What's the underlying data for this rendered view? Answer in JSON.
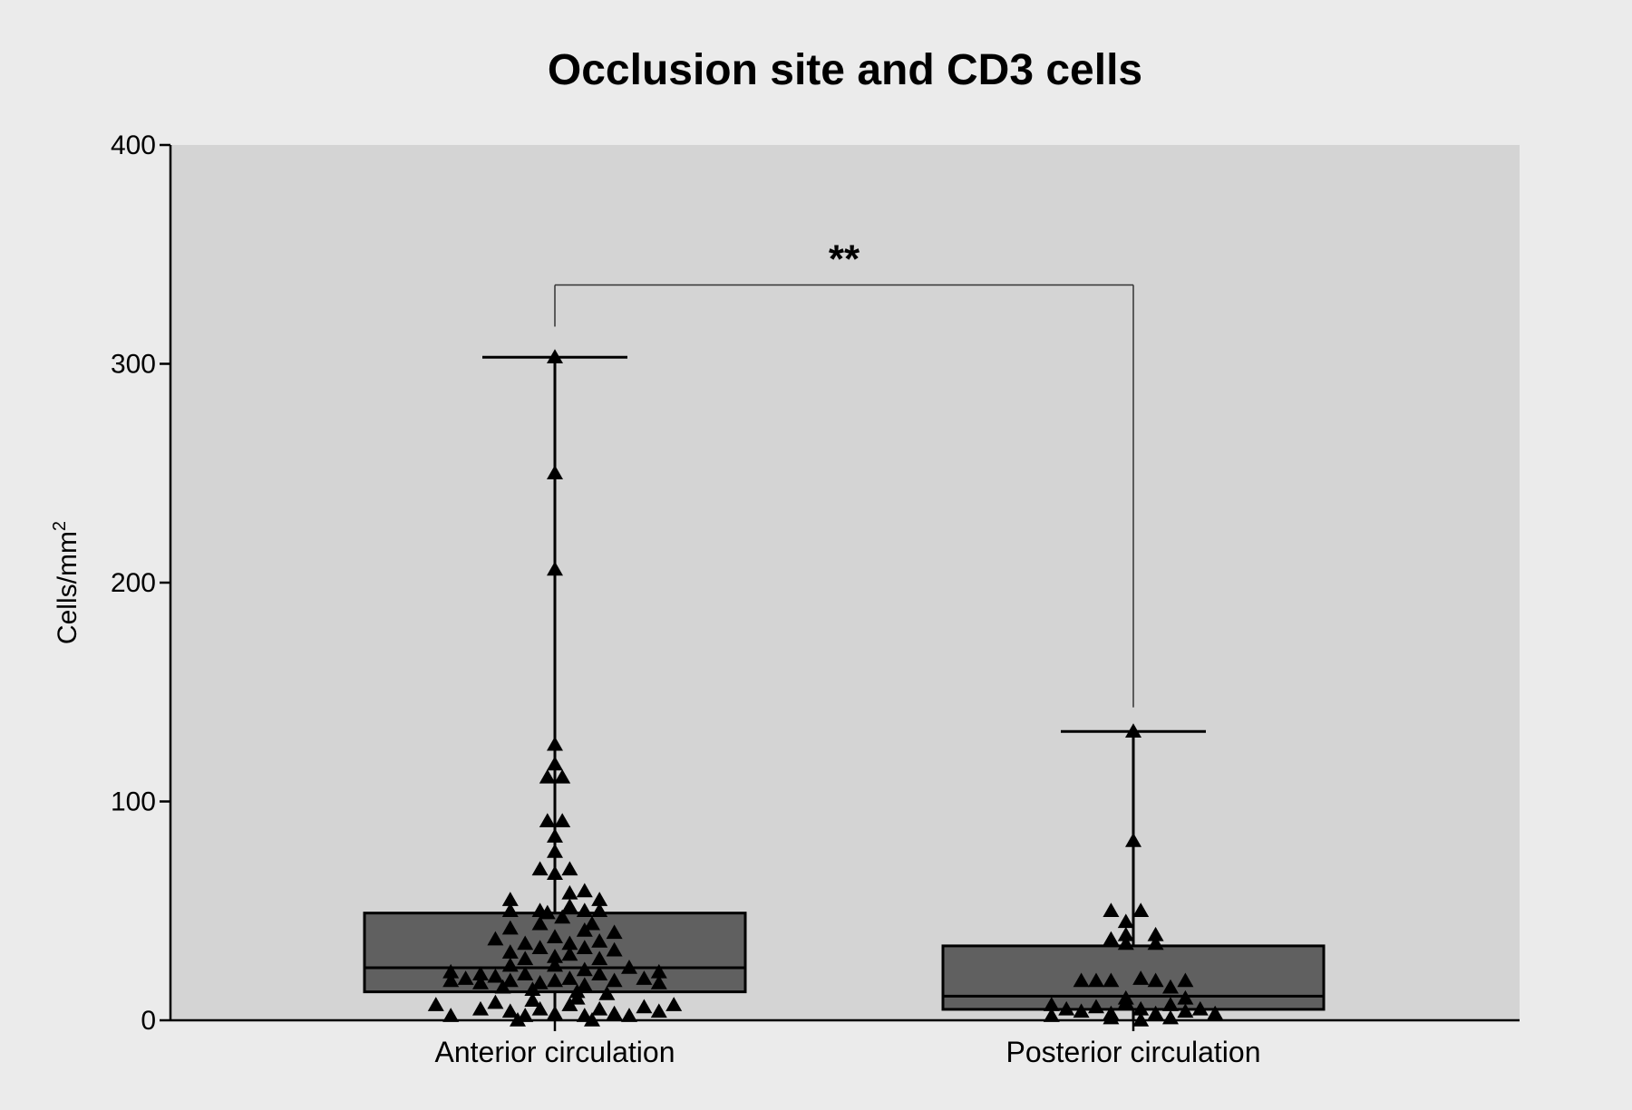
{
  "chart_data": {
    "type": "box",
    "title": "Occlusion site and CD3 cells",
    "ylabel_base": "Cells/mm",
    "ylabel_sup": "2",
    "xlabel": "",
    "ylim": [
      0,
      400
    ],
    "yticks": [
      0,
      100,
      200,
      300,
      400
    ],
    "categories": [
      "Anterior circulation",
      "Posterior circulation"
    ],
    "grid": false,
    "colors": {
      "page_background": "#ebebeb",
      "plot_background": "#d4d4d4",
      "box_fill": "#606060",
      "ink": "#000000"
    },
    "groups": [
      {
        "name": "Anterior circulation",
        "box": {
          "whisker_low": 0,
          "q1": 13,
          "median": 24,
          "q3": 49,
          "whisker_high": 303
        },
        "points": [
          {
            "x": -0.32,
            "y": 7
          },
          {
            "x": -0.28,
            "y": 2
          },
          {
            "x": -0.2,
            "y": 5
          },
          {
            "x": -0.16,
            "y": 8
          },
          {
            "x": -0.12,
            "y": 4
          },
          {
            "x": -0.08,
            "y": 2
          },
          {
            "x": -0.04,
            "y": 5
          },
          {
            "x": 0,
            "y": 3
          },
          {
            "x": 0.04,
            "y": 7
          },
          {
            "x": 0.08,
            "y": 2
          },
          {
            "x": 0.12,
            "y": 5
          },
          {
            "x": 0.16,
            "y": 3
          },
          {
            "x": 0.2,
            "y": 2
          },
          {
            "x": 0.24,
            "y": 6
          },
          {
            "x": 0.28,
            "y": 4
          },
          {
            "x": 0.32,
            "y": 7
          },
          {
            "x": -0.1,
            "y": 0
          },
          {
            "x": 0.1,
            "y": 0
          },
          {
            "x": -0.06,
            "y": 9
          },
          {
            "x": 0.06,
            "y": 10
          },
          {
            "x": -0.28,
            "y": 22
          },
          {
            "x": -0.28,
            "y": 18
          },
          {
            "x": -0.24,
            "y": 19
          },
          {
            "x": -0.2,
            "y": 21
          },
          {
            "x": -0.2,
            "y": 17
          },
          {
            "x": -0.16,
            "y": 20
          },
          {
            "x": -0.12,
            "y": 25
          },
          {
            "x": -0.12,
            "y": 18
          },
          {
            "x": -0.08,
            "y": 21
          },
          {
            "x": -0.04,
            "y": 17
          },
          {
            "x": 0,
            "y": 25
          },
          {
            "x": 0,
            "y": 18
          },
          {
            "x": 0.04,
            "y": 19
          },
          {
            "x": 0.08,
            "y": 23
          },
          {
            "x": 0.08,
            "y": 16
          },
          {
            "x": 0.12,
            "y": 21
          },
          {
            "x": 0.16,
            "y": 18
          },
          {
            "x": 0.2,
            "y": 24
          },
          {
            "x": 0.24,
            "y": 19
          },
          {
            "x": 0.28,
            "y": 22
          },
          {
            "x": 0.28,
            "y": 17
          },
          {
            "x": -0.06,
            "y": 14
          },
          {
            "x": 0.06,
            "y": 13
          },
          {
            "x": 0.14,
            "y": 12
          },
          {
            "x": -0.14,
            "y": 15
          },
          {
            "x": -0.16,
            "y": 37
          },
          {
            "x": -0.12,
            "y": 31
          },
          {
            "x": -0.12,
            "y": 42
          },
          {
            "x": -0.08,
            "y": 35
          },
          {
            "x": -0.08,
            "y": 28
          },
          {
            "x": -0.04,
            "y": 44
          },
          {
            "x": -0.04,
            "y": 33
          },
          {
            "x": 0,
            "y": 29
          },
          {
            "x": 0,
            "y": 38
          },
          {
            "x": 0.04,
            "y": 35
          },
          {
            "x": 0.04,
            "y": 30
          },
          {
            "x": 0.08,
            "y": 41
          },
          {
            "x": 0.08,
            "y": 33
          },
          {
            "x": 0.12,
            "y": 36
          },
          {
            "x": 0.12,
            "y": 28
          },
          {
            "x": 0.16,
            "y": 40
          },
          {
            "x": 0.16,
            "y": 32
          },
          {
            "x": -0.02,
            "y": 49
          },
          {
            "x": 0.02,
            "y": 47
          },
          {
            "x": 0.1,
            "y": 44
          },
          {
            "x": -0.12,
            "y": 55
          },
          {
            "x": -0.12,
            "y": 50
          },
          {
            "x": 0.04,
            "y": 52
          },
          {
            "x": 0.04,
            "y": 58
          },
          {
            "x": 0.08,
            "y": 59
          },
          {
            "x": 0.12,
            "y": 55
          },
          {
            "x": 0.12,
            "y": 50
          },
          {
            "x": 0.08,
            "y": 50
          },
          {
            "x": -0.04,
            "y": 50
          },
          {
            "x": -0.04,
            "y": 69
          },
          {
            "x": 0.04,
            "y": 69
          },
          {
            "x": 0,
            "y": 67
          },
          {
            "x": 0,
            "y": 77
          },
          {
            "x": 0,
            "y": 84
          },
          {
            "x": -0.02,
            "y": 91
          },
          {
            "x": 0.02,
            "y": 91
          },
          {
            "x": -0.02,
            "y": 111
          },
          {
            "x": 0.02,
            "y": 111
          },
          {
            "x": 0,
            "y": 117
          },
          {
            "x": 0,
            "y": 126
          },
          {
            "x": 0,
            "y": 206
          },
          {
            "x": 0,
            "y": 250
          },
          {
            "x": 0,
            "y": 303
          }
        ]
      },
      {
        "name": "Posterior circulation",
        "box": {
          "whisker_low": 0,
          "q1": 5,
          "median": 11,
          "q3": 34,
          "whisker_high": 132
        },
        "points": [
          {
            "x": -0.22,
            "y": 7
          },
          {
            "x": -0.18,
            "y": 5
          },
          {
            "x": -0.14,
            "y": 4
          },
          {
            "x": -0.1,
            "y": 6
          },
          {
            "x": -0.06,
            "y": 3
          },
          {
            "x": -0.02,
            "y": 8
          },
          {
            "x": 0.02,
            "y": 5
          },
          {
            "x": 0.06,
            "y": 3
          },
          {
            "x": 0.1,
            "y": 7
          },
          {
            "x": 0.14,
            "y": 4
          },
          {
            "x": 0.18,
            "y": 5
          },
          {
            "x": 0.22,
            "y": 3
          },
          {
            "x": -0.06,
            "y": 1
          },
          {
            "x": 0.02,
            "y": 0
          },
          {
            "x": 0.1,
            "y": 1
          },
          {
            "x": -0.22,
            "y": 2
          },
          {
            "x": -0.14,
            "y": 18
          },
          {
            "x": -0.1,
            "y": 18
          },
          {
            "x": -0.06,
            "y": 18
          },
          {
            "x": 0.02,
            "y": 19
          },
          {
            "x": 0.06,
            "y": 18
          },
          {
            "x": 0.1,
            "y": 15
          },
          {
            "x": 0.14,
            "y": 18
          },
          {
            "x": -0.02,
            "y": 10
          },
          {
            "x": 0.14,
            "y": 10
          },
          {
            "x": -0.06,
            "y": 37
          },
          {
            "x": -0.02,
            "y": 35
          },
          {
            "x": -0.02,
            "y": 39
          },
          {
            "x": 0.06,
            "y": 35
          },
          {
            "x": 0.06,
            "y": 39
          },
          {
            "x": -0.02,
            "y": 45
          },
          {
            "x": -0.06,
            "y": 50
          },
          {
            "x": 0.02,
            "y": 50
          },
          {
            "x": 0,
            "y": 82
          },
          {
            "x": 0,
            "y": 132
          }
        ]
      }
    ],
    "annotation": {
      "text": "**",
      "between": [
        0,
        1
      ],
      "y_level": 336,
      "left_drop_to": 317,
      "right_drop_to": 143
    }
  }
}
